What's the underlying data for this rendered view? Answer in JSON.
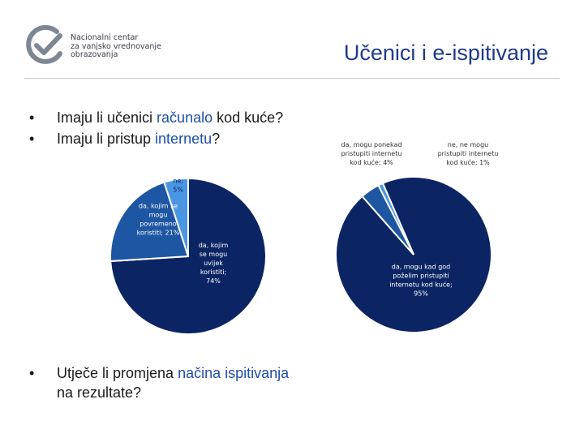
{
  "logo": {
    "text": "Nacionalni centar\nza vanjsko vrednovanje\nobrazovanja"
  },
  "slide": {
    "title": "Učenici i e-ispitivanje",
    "bullet_marker": "•",
    "bullet1": {
      "pre": "Imaju li učenici ",
      "highlight": "računalo",
      "post": " kod kuće?"
    },
    "bullet2": {
      "pre": "Imaju li pristup ",
      "highlight": "internetu",
      "post": "?"
    },
    "bullet3": {
      "pre": "Utječe li promjena ",
      "highlight": "načina ispitivanja",
      "post": "",
      "line2": "na rezultate?"
    }
  },
  "colors": {
    "navy": "#0b2464",
    "mid_blue": "#1d56a2",
    "light_blue": "#4a96e2",
    "highlight": "#1f4ea8",
    "title": "#1f3a8a"
  },
  "chart_data": [
    {
      "type": "pie",
      "slices": [
        {
          "label": [
            "da, kojim",
            "se mogu",
            "uvijek",
            "koristiti;",
            "74%"
          ],
          "value": 74,
          "color": "#0b2464",
          "label_color": "#ffffff"
        },
        {
          "label": [
            "da, kojim se",
            "mogu",
            "povremeno",
            "koristiti; 21%"
          ],
          "value": 21,
          "color": "#1d56a2",
          "label_color": "#ffffff"
        },
        {
          "label": [
            "ne;",
            "5%"
          ],
          "value": 5,
          "color": "#4a96e2",
          "label_color": "#0b2464"
        }
      ]
    },
    {
      "type": "pie",
      "slices": [
        {
          "label": [
            "da, mogu kad god",
            "poželim pristupiti",
            "internetu kod kuće;",
            "95%"
          ],
          "value": 95,
          "color": "#0b2464",
          "label_color": "#ffffff"
        },
        {
          "label": [
            "da, mogu ponekad",
            "pristupiti internetu",
            "kod kuće; 4%"
          ],
          "value": 4,
          "color": "#1d56a2",
          "label_color": "#333333"
        },
        {
          "label": [
            "ne, ne mogu",
            "pristupiti internetu",
            "kod kuće; 1%"
          ],
          "value": 1,
          "color": "#4a96e2",
          "label_color": "#333333"
        }
      ]
    }
  ]
}
